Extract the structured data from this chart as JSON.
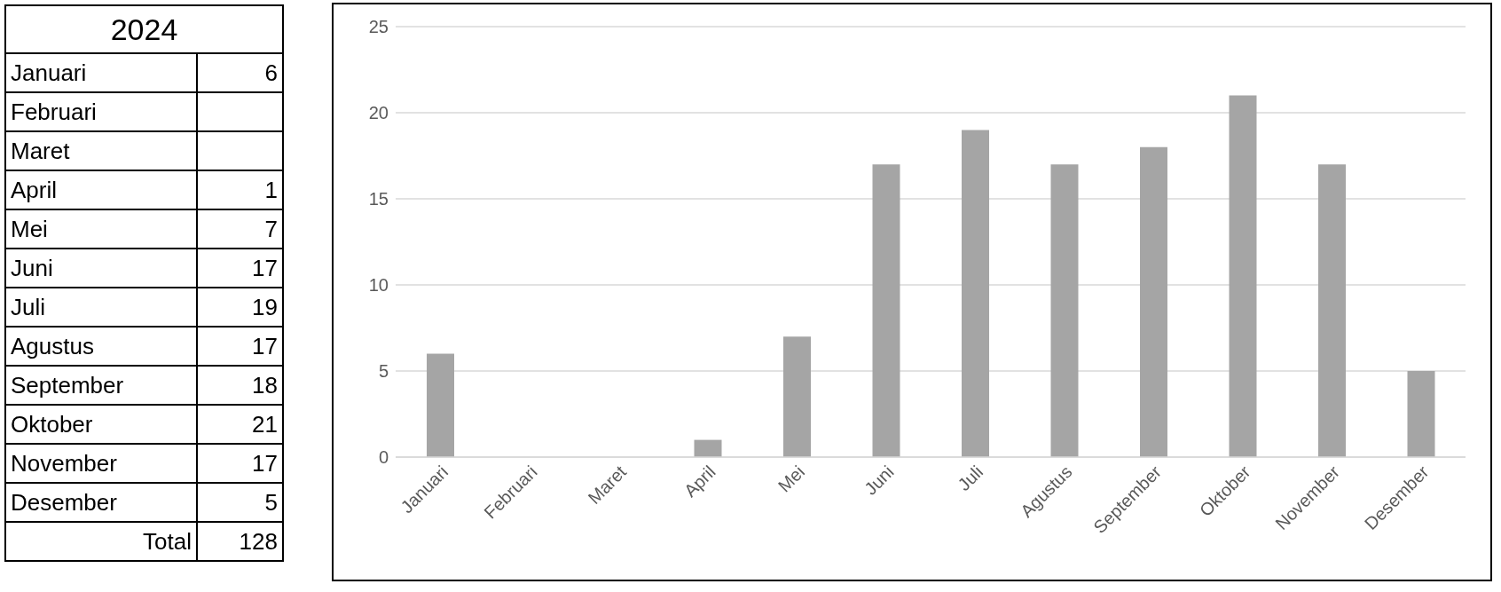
{
  "chart_data": [
    {
      "type": "other",
      "title": "2024",
      "categories": [
        "Januari",
        "Februari",
        "Maret",
        "April",
        "Mei",
        "Juni",
        "Juli",
        "Agustus",
        "September",
        "Oktober",
        "November",
        "Desember"
      ],
      "values": [
        6,
        null,
        null,
        1,
        7,
        17,
        19,
        17,
        18,
        21,
        17,
        5
      ],
      "data_labels": true,
      "annotations": [
        "Total",
        "128"
      ]
    },
    {
      "type": "bar",
      "categories": [
        "Januari",
        "Februari",
        "Maret",
        "April",
        "Mei",
        "Juni",
        "Juli",
        "Agustus",
        "September",
        "Oktober",
        "November",
        "Desember"
      ],
      "values": [
        6,
        null,
        null,
        1,
        7,
        17,
        19,
        17,
        18,
        21,
        17,
        5
      ],
      "color": "#a5a5a5",
      "ylim": [
        0,
        25
      ],
      "yticks": [
        0,
        5,
        10,
        15,
        20,
        25
      ],
      "grid": "y"
    }
  ]
}
